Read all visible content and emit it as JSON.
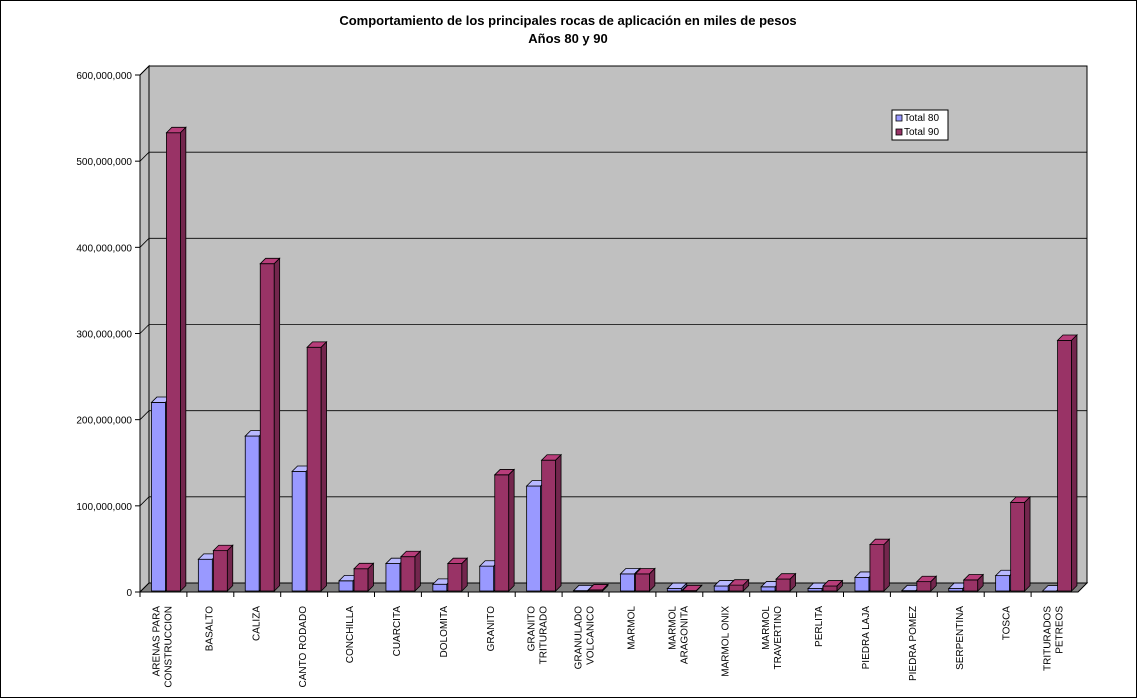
{
  "chart_data": {
    "type": "bar",
    "title": "Comportamiento de los principales rocas de aplicación en miles de pesos",
    "subtitle": "Años 80 y 90",
    "xlabel": "",
    "ylabel": "",
    "ylim": [
      0,
      600000000
    ],
    "yticks": [
      "0",
      "100,000,000",
      "200,000,000",
      "300,000,000",
      "400,000,000",
      "500,000,000",
      "600,000,000"
    ],
    "grid": true,
    "legend_position": "top-right",
    "categories": [
      "ARENAS PARA CONSTRUCCION",
      "BASALTO",
      "CALIZA",
      "CANTO RODADO",
      "CONCHILLA",
      "CUARCITA",
      "DOLOMITA",
      "GRANITO",
      "GRANITO TRITURADO",
      "GRANULADO VOLCANICO",
      "MARMOL",
      "MARMOL ARAGONITA",
      "MARMOL ONIX",
      "MARMOL TRAVERTINO",
      "PERLITA",
      "PIEDRA LAJA",
      "PIEDRA POMEZ",
      "SERPENTINA",
      "TOSCA",
      "TRITURADOS PETREOS"
    ],
    "category_lines": [
      [
        "ARENAS PARA",
        "CONSTRUCCION"
      ],
      [
        "BASALTO"
      ],
      [
        "CALIZA"
      ],
      [
        "CANTO RODADO"
      ],
      [
        "CONCHILLA"
      ],
      [
        "CUARCITA"
      ],
      [
        "DOLOMITA"
      ],
      [
        "GRANITO"
      ],
      [
        "GRANITO",
        "TRITURADO"
      ],
      [
        "GRANULADO",
        "VOLCANICO"
      ],
      [
        "MARMOL"
      ],
      [
        "MARMOL",
        "ARAGONITA"
      ],
      [
        "MARMOL ONIX"
      ],
      [
        "MARMOL",
        "TRAVERTINO"
      ],
      [
        "PERLITA"
      ],
      [
        "PIEDRA LAJA"
      ],
      [
        "PIEDRA POMEZ"
      ],
      [
        "SERPENTINA"
      ],
      [
        "TOSCA"
      ],
      [
        "TRITURADOS",
        "PETREOS"
      ]
    ],
    "series": [
      {
        "name": "Total 80",
        "color": "#9999ff",
        "values": [
          220000000,
          38000000,
          181000000,
          140000000,
          13000000,
          33000000,
          9000000,
          30000000,
          123000000,
          1500000,
          21000000,
          4000000,
          7000000,
          6000000,
          4000000,
          17000000,
          1500000,
          4000000,
          19000000,
          500000
        ]
      },
      {
        "name": "Total 90",
        "color": "#993366",
        "values": [
          533000000,
          48000000,
          381000000,
          284000000,
          27000000,
          41000000,
          33000000,
          136000000,
          153000000,
          2500000,
          21000000,
          1500000,
          8000000,
          15000000,
          7000000,
          55000000,
          12000000,
          14000000,
          104000000,
          292000000
        ]
      }
    ],
    "colors": {
      "wall": "#c0c0c0",
      "floor": "#808080",
      "gridline": "#000000"
    }
  }
}
